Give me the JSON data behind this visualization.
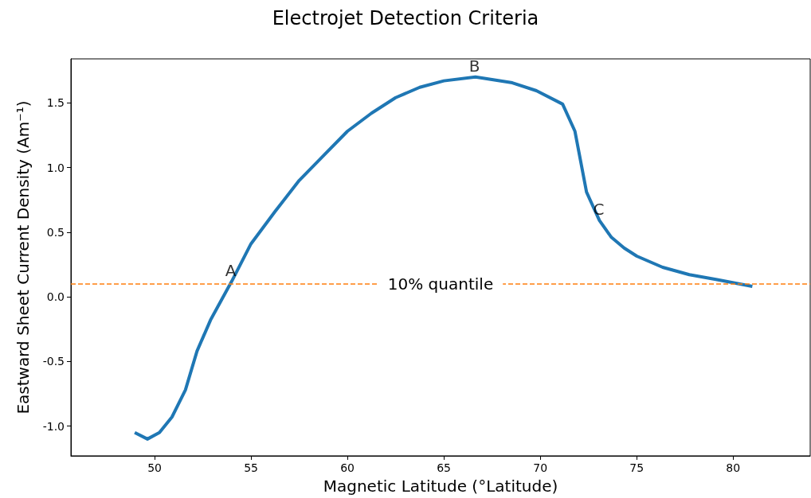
{
  "chart_data": {
    "type": "line",
    "title": "Electrojet Detection Criteria",
    "xlabel": "Magnetic Latitude (°Latitude)",
    "ylabel": "Eastward Sheet Current Density (Am⁻¹)",
    "x": [
      48.97,
      49.63,
      50.25,
      50.9,
      51.6,
      52.2,
      52.9,
      54.0,
      55.0,
      56.25,
      57.5,
      58.75,
      60.0,
      61.25,
      62.5,
      63.75,
      65.0,
      66.64,
      68.55,
      69.8,
      71.16,
      71.8,
      72.4,
      73.07,
      73.69,
      74.35,
      75.01,
      76.35,
      77.73,
      79.17,
      81.0
    ],
    "series": [
      {
        "color": "#1f77b4",
        "values": [
          -1.05,
          -1.1,
          -1.05,
          -0.93,
          -0.72,
          -0.42,
          -0.18,
          0.12,
          0.41,
          0.66,
          0.9,
          1.09,
          1.28,
          1.42,
          1.54,
          1.62,
          1.67,
          1.7,
          1.655,
          1.594,
          1.49,
          1.28,
          0.81,
          0.59,
          0.46,
          0.377,
          0.314,
          0.228,
          0.171,
          0.133,
          0.08
        ]
      }
    ],
    "xlim": [
      45.66,
      84.0
    ],
    "ylim": [
      -1.23,
      1.84
    ],
    "xticks": [
      50,
      55,
      60,
      65,
      70,
      75,
      80
    ],
    "yticks": [
      {
        "value": -1,
        "label": "-1.0"
      },
      -0.5,
      {
        "value": 0,
        "label": "0.0"
      },
      0.5,
      {
        "value": 1,
        "label": "1.0"
      },
      1.5
    ],
    "ref_lines": [
      {
        "axis": "y",
        "value": 0.1,
        "label": "10% quantile",
        "color": "#ff7f0e",
        "line_style": "dashed"
      }
    ],
    "annotations": [
      {
        "text": "A",
        "x": 54.0,
        "y": 0.12
      },
      {
        "text": "B",
        "x": 66.64,
        "y": 1.7
      },
      {
        "text": "C",
        "x": 73.07,
        "y": 0.59
      }
    ],
    "grid": false,
    "marker": "none",
    "line_style": "solid"
  }
}
